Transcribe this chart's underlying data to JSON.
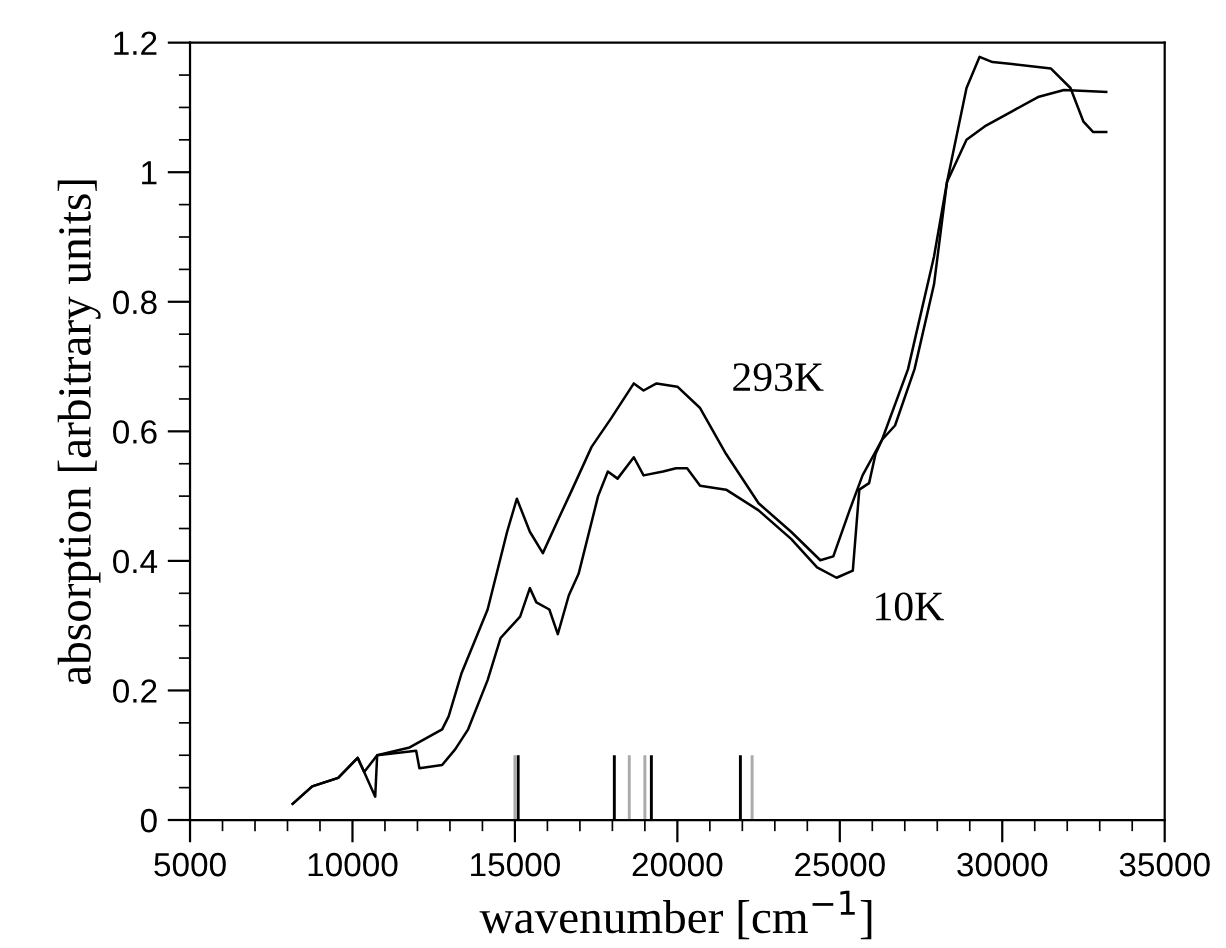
{
  "chart_data": {
    "type": "line",
    "xlabel": "wavenumber [cm$^{−1}$]",
    "ylabel": "absorption [arbitrary units]",
    "xlim": [
      5000,
      35000
    ],
    "xticks": [
      5000,
      10000,
      15000,
      20000,
      25000,
      30000,
      35000
    ],
    "ylim": [
      0,
      1.2
    ],
    "yticks": [
      0,
      0.2,
      0.4,
      0.6,
      0.8,
      1,
      1.2
    ],
    "grid": false,
    "legend": false,
    "series": [
      {
        "color": "#000000",
        "x": [
          8160,
          8760,
          9560,
          10160,
          10360,
          10760,
          11760,
          12760,
          12960,
          13360,
          14160,
          14760,
          15060,
          15460,
          15860,
          16360,
          16760,
          17360,
          17960,
          18660,
          18960,
          19360,
          20000,
          20700,
          21500,
          22500,
          23500,
          24400,
          24800,
          25300,
          25700,
          26300,
          27100,
          27900,
          28300,
          28900,
          29500,
          30300,
          31100,
          31900,
          33200
        ],
        "values": [
          0.025,
          0.052,
          0.065,
          0.096,
          0.074,
          0.1,
          0.112,
          0.14,
          0.16,
          0.227,
          0.325,
          0.445,
          0.496,
          0.445,
          0.412,
          0.467,
          0.51,
          0.576,
          0.62,
          0.674,
          0.663,
          0.674,
          0.669,
          0.636,
          0.565,
          0.489,
          0.445,
          0.401,
          0.407,
          0.478,
          0.532,
          0.587,
          0.696,
          0.87,
          0.985,
          1.05,
          1.072,
          1.094,
          1.116,
          1.127,
          1.124
        ]
      },
      {
        "color": "#000000",
        "x": [
          8160,
          8760,
          9560,
          10160,
          10360,
          10700,
          10760,
          11960,
          12060,
          12760,
          13160,
          13560,
          14160,
          14560,
          15160,
          15460,
          15660,
          16060,
          16320,
          16660,
          16960,
          17560,
          17860,
          18160,
          18660,
          18960,
          19560,
          19960,
          20300,
          20700,
          21500,
          22500,
          23500,
          24300,
          24900,
          25400,
          25600,
          25900,
          26100,
          26300,
          26700,
          27300,
          27900,
          28300,
          28900,
          29300,
          29700,
          30300,
          31500,
          32100,
          32500,
          32800,
          33200
        ],
        "values": [
          0.025,
          0.052,
          0.065,
          0.096,
          0.074,
          0.036,
          0.1,
          0.107,
          0.08,
          0.085,
          0.109,
          0.14,
          0.216,
          0.281,
          0.314,
          0.358,
          0.336,
          0.325,
          0.287,
          0.347,
          0.38,
          0.5,
          0.538,
          0.527,
          0.56,
          0.532,
          0.538,
          0.543,
          0.543,
          0.516,
          0.51,
          0.478,
          0.434,
          0.39,
          0.374,
          0.385,
          0.51,
          0.52,
          0.565,
          0.587,
          0.609,
          0.696,
          0.827,
          0.985,
          1.13,
          1.178,
          1.17,
          1.167,
          1.16,
          1.13,
          1.078,
          1.062,
          1.062
        ]
      },
      {
        "type": "bar",
        "color": "#000000",
        "x": [
          15100,
          18060,
          19200,
          21940
        ],
        "values": [
          0.1,
          0.1,
          0.1,
          0.1
        ]
      },
      {
        "type": "bar",
        "color": "#aaaaaa",
        "x": [
          15000,
          18520,
          19000,
          22300
        ],
        "values": [
          0.1,
          0.1,
          0.1,
          0.1
        ]
      }
    ],
    "annotations": [
      "293K",
      "10K"
    ]
  }
}
